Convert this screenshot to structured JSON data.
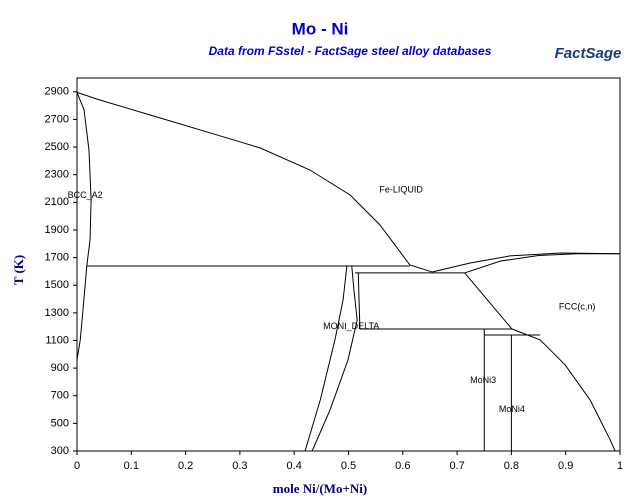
{
  "chart_data": {
    "type": "line",
    "title": "Mo - Ni",
    "subtitle": "Data from FSstel - FactSage steel alloy databases",
    "logo": "FactSage",
    "x_label": "mole Ni/(Mo+Ni)",
    "y_label": "T (K)",
    "color": "#000000",
    "xlim": [
      0,
      1
    ],
    "ylim": [
      300,
      3000
    ],
    "xticks": [
      0,
      0.1,
      0.2,
      0.3,
      0.4,
      0.5,
      0.6,
      0.7,
      0.8,
      0.9,
      1
    ],
    "yticks": [
      300,
      500,
      700,
      900,
      1100,
      1300,
      1500,
      1700,
      1900,
      2100,
      2300,
      2500,
      2700,
      2900
    ],
    "annotations": [
      {
        "text": "BCC_A2",
        "x": 0.015,
        "y": 2150
      },
      {
        "text": "Fe-LIQUID",
        "x": 0.597,
        "y": 2190
      },
      {
        "text": "FCC(c,n)",
        "x": 0.921,
        "y": 1340
      },
      {
        "text": "MONI_DELTA",
        "x": 0.505,
        "y": 1200
      },
      {
        "text": "MoNi3",
        "x": 0.748,
        "y": 810
      },
      {
        "text": "MoNi4",
        "x": 0.801,
        "y": 600
      }
    ],
    "lines": [
      {
        "x": [
          0,
          0.042,
          0.134,
          0.227,
          0.337,
          0.429,
          0.503,
          0.558,
          0.613,
          0.654
        ],
        "y": [
          2896,
          2841,
          2733,
          2624,
          2494,
          2334,
          2153,
          1936,
          1647,
          1596
        ]
      },
      {
        "x": [
          0.654,
          0.724,
          0.797,
          0.89,
          1
        ],
        "y": [
          1596,
          1661,
          1712,
          1733,
          1728
        ]
      },
      {
        "x": [
          0.714,
          0.78,
          0.85,
          0.92,
          1
        ],
        "y": [
          1589,
          1675,
          1715,
          1728,
          1728
        ]
      },
      {
        "x": [
          0,
          0.013,
          0.022,
          0.026,
          0.024,
          0.018
        ],
        "y": [
          2896,
          2769,
          2479,
          2117,
          1828,
          1639
        ]
      },
      {
        "x": [
          0.018,
          0.011,
          0.006,
          0
        ],
        "y": [
          1639,
          1321,
          1104,
          959
        ]
      },
      {
        "x": [
          0.018,
          0.613
        ],
        "y": [
          1639,
          1639
        ]
      },
      {
        "x": [
          0.42,
          0.448,
          0.475,
          0.49,
          0.497
        ],
        "y": [
          300,
          669,
          1104,
          1393,
          1639
        ]
      },
      {
        "x": [
          0.433,
          0.466,
          0.499,
          0.516,
          0.51,
          0.506
        ],
        "y": [
          300,
          597,
          959,
          1248,
          1466,
          1639
        ]
      },
      {
        "x": [
          0.518,
          0.521
        ],
        "y": [
          1589,
          1183
        ]
      },
      {
        "x": [
          0.512,
          0.714
        ],
        "y": [
          1589,
          1589
        ]
      },
      {
        "x": [
          0.521,
          0.801
        ],
        "y": [
          1183,
          1183
        ]
      },
      {
        "x": [
          0.714,
          0.801
        ],
        "y": [
          1589,
          1183
        ]
      },
      {
        "x": [
          0.801,
          0.853,
          0.899,
          0.945,
          0.982,
          0.991
        ],
        "y": [
          1183,
          1104,
          923,
          669,
          380,
          300
        ]
      },
      {
        "x": [
          0.75,
          0.75
        ],
        "y": [
          1183,
          300
        ]
      },
      {
        "x": [
          0.75,
          0.853
        ],
        "y": [
          1140,
          1140
        ]
      },
      {
        "x": [
          0.8,
          0.8
        ],
        "y": [
          1140,
          300
        ]
      },
      {
        "x": [
          0.75,
          0.991
        ],
        "y": [
          300,
          300
        ]
      }
    ]
  }
}
